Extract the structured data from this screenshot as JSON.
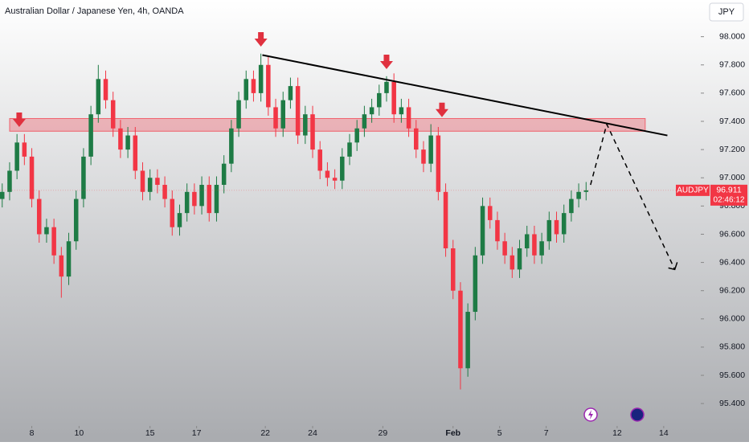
{
  "chart_data": {
    "type": "candlestick",
    "title": "Australian Dollar / Japanese Yen, 4h, OANDA",
    "currency_button": "JPY",
    "symbol": "AUDJPY",
    "last_price": {
      "value": 96.911,
      "label": "96.911"
    },
    "countdown": "02:46:12",
    "up_color": "#1e7b45",
    "down_color": "#f23645",
    "xlim": [
      -0.3,
      94.3
    ],
    "ylim": [
      95.27,
      98.26
    ],
    "yticks": [
      {
        "value": 95.4,
        "label": "95.400"
      },
      {
        "value": 95.6,
        "label": "95.600"
      },
      {
        "value": 95.8,
        "label": "95.800"
      },
      {
        "value": 96.0,
        "label": "96.000"
      },
      {
        "value": 96.2,
        "label": "96.200"
      },
      {
        "value": 96.4,
        "label": "96.400"
      },
      {
        "value": 96.6,
        "label": "96.600"
      },
      {
        "value": 96.8,
        "label": "96.800"
      },
      {
        "value": 97.0,
        "label": "97.000"
      },
      {
        "value": 97.2,
        "label": "97.200"
      },
      {
        "value": 97.4,
        "label": "97.400"
      },
      {
        "value": 97.6,
        "label": "97.600"
      },
      {
        "value": 97.8,
        "label": "97.800"
      },
      {
        "value": 98.0,
        "label": "98.000"
      }
    ],
    "xticks": [
      {
        "value": 4,
        "label": "8"
      },
      {
        "value": 10.4,
        "label": "10"
      },
      {
        "value": 20,
        "label": "15"
      },
      {
        "value": 26.3,
        "label": "17"
      },
      {
        "value": 35.6,
        "label": "22"
      },
      {
        "value": 42,
        "label": "24"
      },
      {
        "value": 51.5,
        "label": "29"
      },
      {
        "value": 61,
        "label": "Feb"
      },
      {
        "value": 67.3,
        "label": "5"
      },
      {
        "value": 73.6,
        "label": "7"
      },
      {
        "value": 83.2,
        "label": "12"
      },
      {
        "value": 89.5,
        "label": "14"
      }
    ],
    "open": [
      96.85,
      96.9,
      97.05,
      97.25,
      97.15,
      96.85,
      96.6,
      96.65,
      96.45,
      96.3,
      96.55,
      96.85,
      97.15,
      97.45,
      97.7,
      97.55,
      97.35,
      97.2,
      97.3,
      97.05,
      96.9,
      97.0,
      96.95,
      96.85,
      96.65,
      96.75,
      96.9,
      96.8,
      96.95,
      96.75,
      96.95,
      97.1,
      97.35,
      97.55,
      97.7,
      97.6,
      97.8,
      97.5,
      97.35,
      97.55,
      97.65,
      97.3,
      97.45,
      97.2,
      97.05,
      97.0,
      96.98,
      97.15,
      97.25,
      97.35,
      97.45,
      97.5,
      97.6,
      97.68,
      97.45,
      97.5,
      97.35,
      97.2,
      97.1,
      97.3,
      96.9,
      96.5,
      96.2,
      95.65,
      96.05,
      96.45,
      96.8,
      96.7,
      96.55,
      96.45,
      96.35,
      96.5,
      96.6,
      96.45,
      96.55,
      96.7,
      96.6,
      96.75,
      96.85,
      96.9
    ],
    "high": [
      96.96,
      97.11,
      97.31,
      97.31,
      97.21,
      96.91,
      96.71,
      96.71,
      96.51,
      96.61,
      96.91,
      97.21,
      97.51,
      97.8,
      97.76,
      97.61,
      97.41,
      97.36,
      97.36,
      97.11,
      97.06,
      97.06,
      97.01,
      96.91,
      96.81,
      96.96,
      96.96,
      97.01,
      97.01,
      97.01,
      97.16,
      97.41,
      97.61,
      97.76,
      97.76,
      97.88,
      97.86,
      97.56,
      97.61,
      97.71,
      97.71,
      97.51,
      97.51,
      97.26,
      97.11,
      97.06,
      97.21,
      97.31,
      97.41,
      97.51,
      97.56,
      97.66,
      97.72,
      97.74,
      97.56,
      97.56,
      97.41,
      97.26,
      97.38,
      97.36,
      96.96,
      96.56,
      96.26,
      96.11,
      96.51,
      96.86,
      96.86,
      96.76,
      96.61,
      96.51,
      96.56,
      96.66,
      96.66,
      96.61,
      96.76,
      96.76,
      96.81,
      96.91,
      96.96,
      96.97
    ],
    "low": [
      96.79,
      96.84,
      96.99,
      97.09,
      96.79,
      96.54,
      96.54,
      96.39,
      96.15,
      96.24,
      96.49,
      96.79,
      97.09,
      97.39,
      97.49,
      97.29,
      97.14,
      97.14,
      96.99,
      96.84,
      96.84,
      96.89,
      96.79,
      96.59,
      96.59,
      96.69,
      96.74,
      96.74,
      96.69,
      96.69,
      96.89,
      97.04,
      97.29,
      97.49,
      97.54,
      97.54,
      97.44,
      97.29,
      97.29,
      97.49,
      97.24,
      97.24,
      97.14,
      96.99,
      96.94,
      96.92,
      96.92,
      97.09,
      97.19,
      97.29,
      97.39,
      97.44,
      97.54,
      97.39,
      97.39,
      97.29,
      97.14,
      97.04,
      97.04,
      96.84,
      96.44,
      96.14,
      95.5,
      95.59,
      95.99,
      96.39,
      96.64,
      96.49,
      96.39,
      96.29,
      96.29,
      96.44,
      96.39,
      96.39,
      96.49,
      96.54,
      96.54,
      96.69,
      96.79,
      96.84
    ],
    "close": [
      96.9,
      97.05,
      97.25,
      97.15,
      96.85,
      96.6,
      96.65,
      96.45,
      96.3,
      96.55,
      96.85,
      97.15,
      97.45,
      97.7,
      97.55,
      97.35,
      97.2,
      97.3,
      97.05,
      96.9,
      97.0,
      96.95,
      96.85,
      96.65,
      96.75,
      96.9,
      96.8,
      96.95,
      96.75,
      96.95,
      97.1,
      97.35,
      97.55,
      97.7,
      97.6,
      97.8,
      97.5,
      97.35,
      97.55,
      97.65,
      97.3,
      97.45,
      97.2,
      97.05,
      97.0,
      96.98,
      97.15,
      97.25,
      97.35,
      97.45,
      97.5,
      97.6,
      97.68,
      97.45,
      97.5,
      97.35,
      97.2,
      97.1,
      97.3,
      96.9,
      96.5,
      96.2,
      95.65,
      96.05,
      96.45,
      96.8,
      96.7,
      96.55,
      96.45,
      96.35,
      96.5,
      96.6,
      96.45,
      96.55,
      96.7,
      96.6,
      96.75,
      96.85,
      96.9,
      96.911
    ],
    "zone": {
      "x": [
        1,
        87
      ],
      "y": [
        97.33,
        97.42
      ],
      "color": "#f23645"
    },
    "trendline": {
      "x": [
        35.2,
        90
      ],
      "y": [
        97.87,
        97.3
      ]
    },
    "arrows": {
      "x": [
        2.3,
        35,
        52,
        59.5
      ],
      "y": [
        97.36,
        97.93,
        97.77,
        97.43
      ]
    },
    "projection": {
      "x": [
        79.6,
        81.8,
        91
      ],
      "y": [
        96.95,
        97.38,
        96.35
      ]
    }
  }
}
